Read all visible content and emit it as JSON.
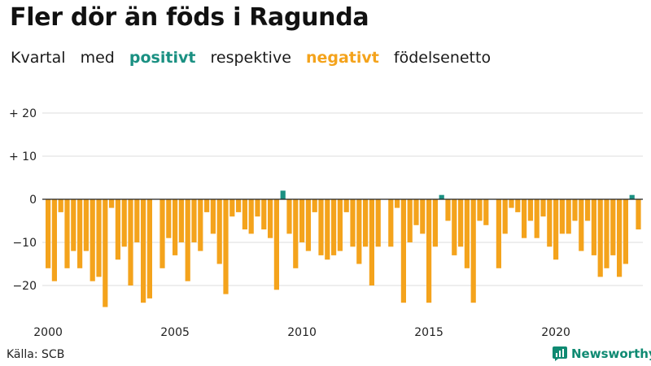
{
  "title": "Fler dör än föds i Ragunda",
  "subtitle": {
    "w1": "Kvartal",
    "w2": "med",
    "positive": "positivt",
    "w4": "respektive",
    "negative": "negativt",
    "w6": "födelsenetto"
  },
  "source": "Källa: SCB",
  "brand": "Newsworthy",
  "colors": {
    "positive": "#1a9082",
    "negative": "#f4a31c",
    "grid": "#dddddd",
    "zero": "#222222",
    "text": "#111111"
  },
  "chart_data": {
    "type": "bar",
    "x_start": 2000,
    "frequency": "quarterly",
    "ylim": [
      -27,
      22
    ],
    "yticks": [
      {
        "value": 20,
        "label": "+ 20"
      },
      {
        "value": 10,
        "label": "+ 10"
      },
      {
        "value": 0,
        "label": "0"
      },
      {
        "value": -10,
        "label": "−10"
      },
      {
        "value": -20,
        "label": "−20"
      }
    ],
    "xticks": [
      {
        "year": 2000,
        "label": "2000"
      },
      {
        "year": 2005,
        "label": "2005"
      },
      {
        "year": 2010,
        "label": "2010"
      },
      {
        "year": 2015,
        "label": "2015"
      },
      {
        "year": 2020,
        "label": "2020"
      }
    ],
    "values": [
      -16,
      -19,
      -3,
      -16,
      -12,
      -16,
      -12,
      -19,
      -18,
      -25,
      -2,
      -14,
      -11,
      -20,
      -10,
      -24,
      -23,
      0,
      -16,
      -9,
      -13,
      -10,
      -19,
      -10,
      -12,
      -3,
      -8,
      -15,
      -22,
      -4,
      -3,
      -7,
      -8,
      -4,
      -7,
      -9,
      -21,
      2,
      -8,
      -16,
      -10,
      -12,
      -3,
      -13,
      -14,
      -13,
      -12,
      -3,
      -11,
      -15,
      -11,
      -20,
      -11,
      0,
      -11,
      -2,
      -24,
      -10,
      -6,
      -8,
      -24,
      -11,
      1,
      -5,
      -13,
      -11,
      -16,
      -24,
      -5,
      -6,
      0,
      -16,
      -8,
      -2,
      -3,
      -9,
      -5,
      -9,
      -4,
      -11,
      -14,
      -8,
      -8,
      -5,
      -12,
      -5,
      -13,
      -18,
      -16,
      -13,
      -18,
      -15,
      1,
      -7
    ]
  }
}
